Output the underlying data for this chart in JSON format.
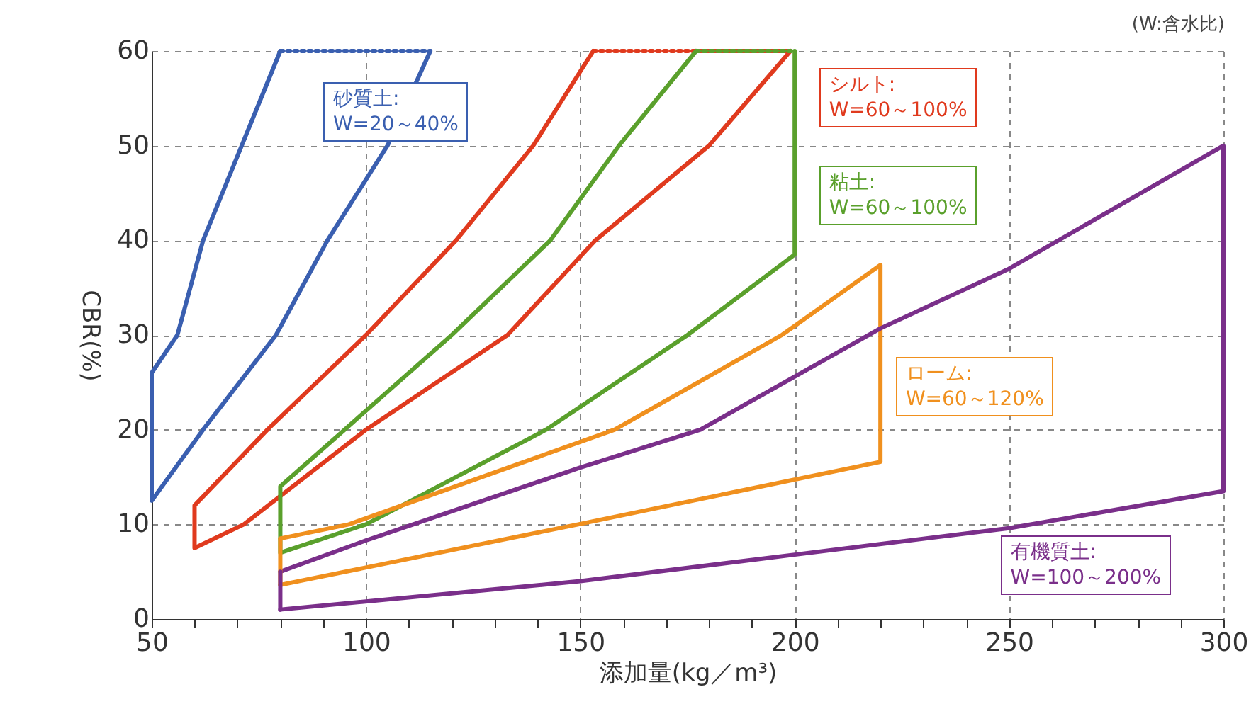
{
  "chart_data": {
    "type": "line",
    "xlabel": "添加量(kg／m³)",
    "ylabel": "CBR(%)",
    "annotations": [
      "(W:含水比)"
    ],
    "xlim": [
      50,
      300
    ],
    "ylim": [
      0,
      60
    ],
    "xticks": [
      50,
      {
        "value": 60,
        "label": null
      },
      {
        "value": 70,
        "label": null
      },
      {
        "value": 80,
        "label": null
      },
      {
        "value": 90,
        "label": null
      },
      100,
      {
        "value": 110,
        "label": null
      },
      {
        "value": 120,
        "label": null
      },
      {
        "value": 130,
        "label": null
      },
      {
        "value": 140,
        "label": null
      },
      150,
      {
        "value": 160,
        "label": null
      },
      {
        "value": 170,
        "label": null
      },
      {
        "value": 180,
        "label": null
      },
      {
        "value": 190,
        "label": null
      },
      200,
      {
        "value": 210,
        "label": null
      },
      {
        "value": 220,
        "label": null
      },
      {
        "value": 230,
        "label": null
      },
      {
        "value": 240,
        "label": null
      },
      250,
      {
        "value": 260,
        "label": null
      },
      {
        "value": 270,
        "label": null
      },
      {
        "value": 280,
        "label": null
      },
      {
        "value": 290,
        "label": null
      },
      300
    ],
    "yticks": [
      0,
      10,
      20,
      30,
      40,
      50,
      60
    ],
    "grid": true,
    "line_style": "solid",
    "series": [
      {
        "name": "砂質土:\nW=20～40%",
        "color": "#3a5fb0",
        "x": [
          115,
          105,
          91,
          79,
          62,
          50,
          50,
          56,
          62,
          71,
          80
        ],
        "values": [
          60,
          50,
          40,
          30,
          20,
          12.5,
          26,
          30,
          40,
          50,
          60
        ]
      },
      {
        "color": "#3a5fb0",
        "line_style": "dotted",
        "x": [
          80,
          115
        ],
        "values": [
          60,
          60
        ]
      },
      {
        "name": "シルト:\nW=60～100%",
        "color": "#e03a1e",
        "x": [
          153,
          139,
          121,
          100,
          77,
          60,
          60,
          71.5,
          100,
          133,
          153.5,
          180,
          199
        ],
        "values": [
          60,
          50,
          40,
          30,
          20,
          12,
          7.5,
          10,
          20,
          30,
          40,
          50,
          60
        ]
      },
      {
        "color": "#e03a1e",
        "line_style": "dotted",
        "x": [
          153,
          199
        ],
        "values": [
          60,
          60
        ]
      },
      {
        "name": "粘土:\nW=60～100%",
        "color": "#5aa02c",
        "x": [
          177,
          159,
          143,
          120,
          95,
          80,
          80,
          100,
          142,
          175,
          200,
          200
        ],
        "values": [
          60,
          50,
          40,
          30,
          20,
          14,
          7,
          10,
          20,
          30,
          38.5,
          60
        ]
      },
      {
        "color": "#5aa02c",
        "line_style": "dotted",
        "x": [
          177,
          200
        ],
        "values": [
          60,
          60
        ]
      },
      {
        "name": "ローム:\nW=60～120%",
        "color": "#f0901e",
        "x": [
          80,
          96,
          158,
          197,
          220,
          220,
          149.5,
          80
        ],
        "values": [
          8.5,
          10,
          20,
          30,
          37.4,
          16.6,
          10,
          3.6
        ]
      },
      {
        "name": "有機質土:\nW=100～200%",
        "color": "#7a2f8a",
        "x": [
          80,
          100,
          150,
          178,
          220,
          250,
          300,
          300,
          250,
          200,
          150,
          80
        ],
        "values": [
          5,
          8.3,
          16,
          20,
          30.7,
          37,
          50,
          13.5,
          9.6,
          6.8,
          4,
          1
        ]
      },
      {
        "color": "#f0901e",
        "x": [
          80,
          80
        ],
        "values": [
          3.6,
          8.5
        ]
      },
      {
        "color": "#7a2f8a",
        "x": [
          80,
          80
        ],
        "values": [
          1,
          5
        ]
      }
    ]
  }
}
